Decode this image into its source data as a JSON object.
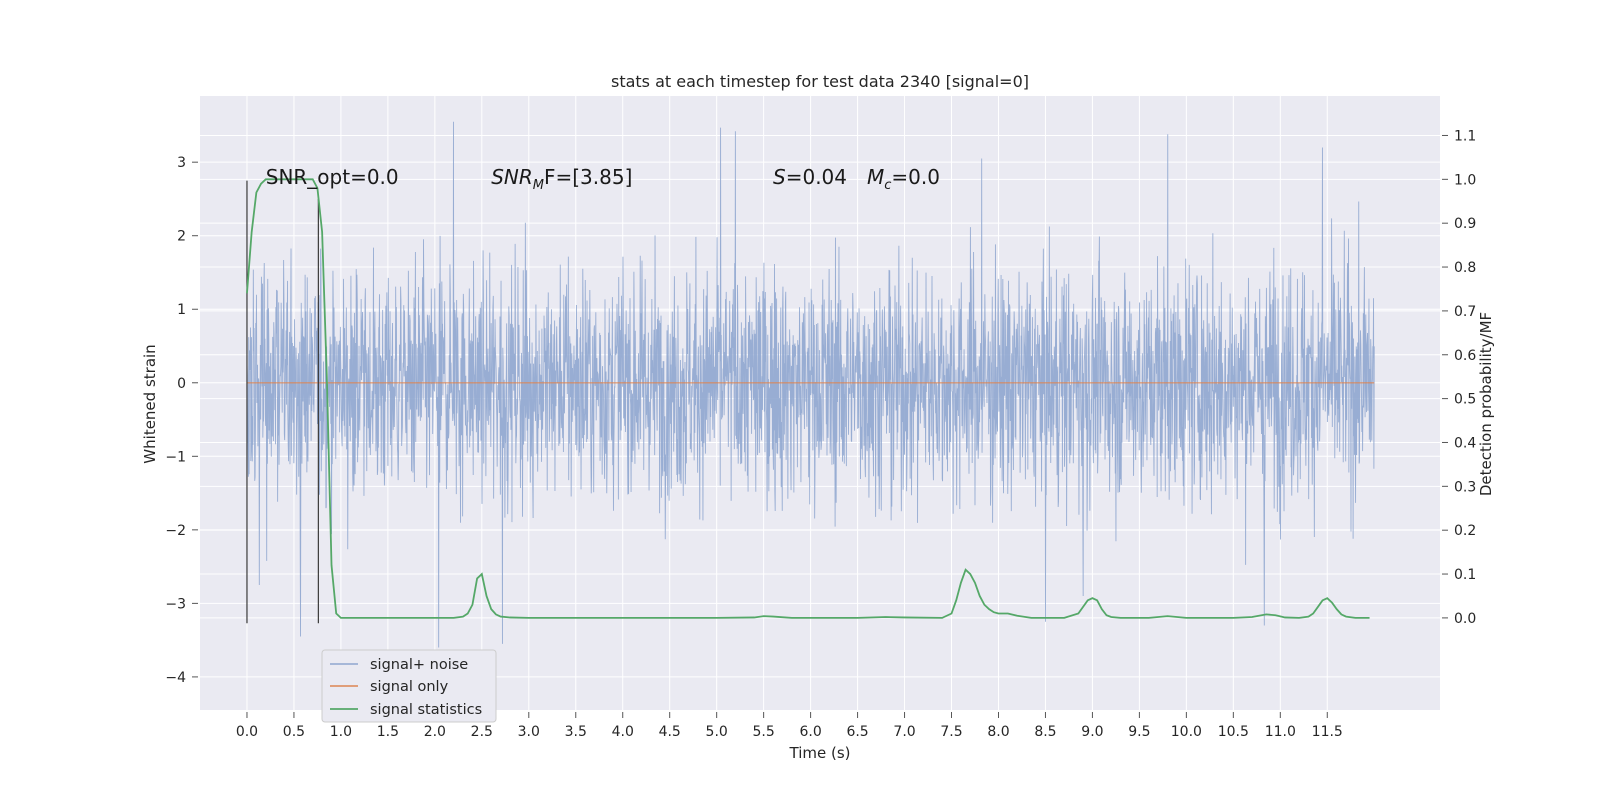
{
  "chart_data": {
    "type": "line",
    "title": "stats at each timestep for test data 2340 [signal=0]",
    "xlabel": "Time (s)",
    "ylabel": "Whitened strain",
    "ylabel_right": "Detection probability/MF",
    "xlim": [
      -0.5,
      12.7
    ],
    "ylim": [
      -4.45,
      3.9
    ],
    "ylim_right": [
      -0.21,
      1.19
    ],
    "x_ticks": [
      0.0,
      0.5,
      1.0,
      1.5,
      2.0,
      2.5,
      3.0,
      3.5,
      4.0,
      4.5,
      5.0,
      5.5,
      6.0,
      6.5,
      7.0,
      7.5,
      8.0,
      8.5,
      9.0,
      9.5,
      10.0,
      10.5,
      11.0,
      11.5
    ],
    "y_ticks": [
      -4,
      -3,
      -2,
      -1,
      0,
      1,
      2,
      3
    ],
    "y_ticks_right": [
      0.0,
      0.1,
      0.2,
      0.3,
      0.4,
      0.5,
      0.6,
      0.7,
      0.8,
      0.9,
      1.0,
      1.1
    ],
    "grid": true,
    "legend_position": "bottom-left",
    "series": [
      {
        "name": "signal+ noise",
        "axis": "left",
        "color": "#8fa6cf",
        "x_range": [
          0.0,
          12.0
        ],
        "envelope_typical": 1.5,
        "spikes": [
          {
            "x": 0.13,
            "y": -2.75
          },
          {
            "x": 0.57,
            "y": -3.45
          },
          {
            "x": 2.04,
            "y": -3.6
          },
          {
            "x": 2.2,
            "y": 3.55
          },
          {
            "x": 2.72,
            "y": -3.55
          },
          {
            "x": 5.04,
            "y": 3.47
          },
          {
            "x": 5.2,
            "y": 3.42
          },
          {
            "x": 7.82,
            "y": 3.05
          },
          {
            "x": 9.8,
            "y": 3.38
          },
          {
            "x": 11.45,
            "y": 3.2
          },
          {
            "x": 8.5,
            "y": -3.25
          },
          {
            "x": 10.83,
            "y": -3.3
          },
          {
            "x": 8.9,
            "y": -2.9
          }
        ]
      },
      {
        "name": "signal only",
        "axis": "left",
        "color": "#dd8452",
        "x": [
          0.0,
          12.0
        ],
        "y": [
          0.0,
          0.0
        ]
      },
      {
        "name": "signal statistics",
        "axis": "right",
        "color": "#55a868",
        "x": [
          0.0,
          0.05,
          0.1,
          0.15,
          0.2,
          0.3,
          0.4,
          0.5,
          0.6,
          0.65,
          0.7,
          0.75,
          0.8,
          0.85,
          0.9,
          0.95,
          1.0,
          1.5,
          2.0,
          2.2,
          2.3,
          2.35,
          2.4,
          2.45,
          2.5,
          2.55,
          2.6,
          2.65,
          2.7,
          2.8,
          3.0,
          4.0,
          5.0,
          5.4,
          5.5,
          5.6,
          5.8,
          6.0,
          6.5,
          6.8,
          7.0,
          7.4,
          7.5,
          7.55,
          7.6,
          7.65,
          7.7,
          7.75,
          7.8,
          7.85,
          7.9,
          7.95,
          8.0,
          8.1,
          8.2,
          8.35,
          8.5,
          8.7,
          8.85,
          8.95,
          9.0,
          9.05,
          9.1,
          9.15,
          9.2,
          9.3,
          9.6,
          9.8,
          10.0,
          10.5,
          10.7,
          10.85,
          10.95,
          11.05,
          11.2,
          11.3,
          11.35,
          11.4,
          11.45,
          11.5,
          11.55,
          11.6,
          11.65,
          11.7,
          11.8,
          11.95
        ],
        "y": [
          0.74,
          0.88,
          0.97,
          0.99,
          1.0,
          1.0,
          1.0,
          1.0,
          1.0,
          1.0,
          1.0,
          0.98,
          0.88,
          0.55,
          0.12,
          0.01,
          0.0,
          0.0,
          0.0,
          0.0,
          0.003,
          0.01,
          0.03,
          0.09,
          0.1,
          0.05,
          0.02,
          0.008,
          0.003,
          0.001,
          0.0,
          0.0,
          0.0,
          0.001,
          0.004,
          0.003,
          0.0,
          0.0,
          0.0,
          0.002,
          0.001,
          0.0,
          0.01,
          0.04,
          0.08,
          0.11,
          0.1,
          0.08,
          0.05,
          0.03,
          0.02,
          0.013,
          0.01,
          0.01,
          0.005,
          0.0,
          0.0,
          0.0,
          0.01,
          0.04,
          0.045,
          0.04,
          0.02,
          0.006,
          0.002,
          0.0,
          0.0,
          0.004,
          0.0,
          0.0,
          0.002,
          0.008,
          0.006,
          0.001,
          0.0,
          0.003,
          0.01,
          0.025,
          0.04,
          0.045,
          0.035,
          0.02,
          0.008,
          0.003,
          0.0,
          0.0
        ]
      }
    ],
    "vertical_markers": [
      {
        "x": 0.0,
        "y_top": 2.75,
        "y_bottom": -3.27
      },
      {
        "x": 0.76,
        "y_top": 2.5,
        "y_bottom": -3.27
      }
    ],
    "annotations": {
      "snr_opt": "SNR_opt=0.0",
      "snr_mf_pre": "SNR",
      "snr_mf_sub": "M",
      "snr_mf_post": "F=[3.85]",
      "s_label": "S",
      "s_value": "=0.04",
      "mc_label": "M",
      "mc_sub": "c",
      "mc_value": "=0.0"
    },
    "annotation_positions_x": [
      0.2,
      2.6,
      5.6,
      6.6
    ]
  }
}
